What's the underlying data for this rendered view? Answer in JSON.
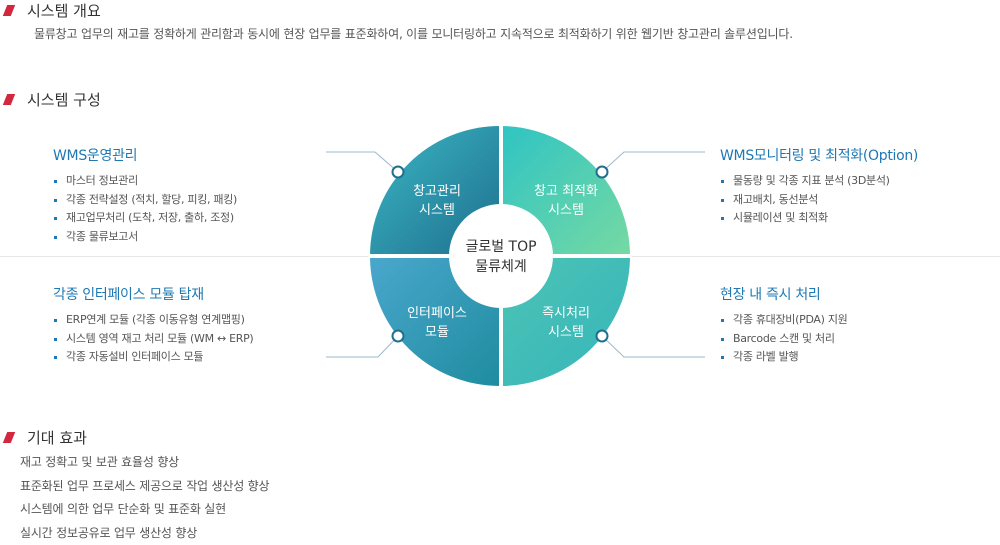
{
  "sections": {
    "overview": {
      "title": "시스템 개요",
      "text": "물류창고 업무의 재고를 정확하게 관리함과 동시에 현장 업무를 표준화하여, 이를 모니터링하고 지속적으로 최적화하기 위한 웹기반 창고관리 솔루션입니다."
    },
    "structure": {
      "title": "시스템 구성"
    },
    "effects": {
      "title": "기대 효과",
      "items": [
        "재고 정확고 및 보관 효율성 향상",
        "표준화된 업무 프로세스 제공으로 작업 생산성 향상",
        "시스템에 의한 업무 단순화 및 표준화 실현",
        "실시간 정보공유로 업무 생산성 향상"
      ]
    }
  },
  "diagram": {
    "center": [
      "글로벌 TOP",
      "물류체계"
    ],
    "quadrants": {
      "top_left": {
        "lines": [
          "창고관리",
          "시스템"
        ],
        "color": "#2b8fa6"
      },
      "top_right": {
        "lines": [
          "창고 최적화",
          "시스템"
        ],
        "color": "#3ec5b7"
      },
      "bottom_left": {
        "lines": [
          "인터페이스",
          "모듈"
        ],
        "color": "#3f9cc3"
      },
      "bottom_right": {
        "lines": [
          "즉시처리",
          "시스템"
        ],
        "color": "#3bb5b2"
      }
    }
  },
  "panels": {
    "top_left": {
      "title": "WMS운영관리",
      "items": [
        "마스터 정보관리",
        "각종 전략설정 (적치, 할당, 피킹, 패킹)",
        "재고업무처리 (도착, 저장, 출하, 조정)",
        "각종 물류보고서"
      ]
    },
    "bottom_left": {
      "title": "각종 인터페이스 모듈 탑재",
      "items": [
        "ERP연계 모듈 (각종 이동유형 연계맵핑)",
        "시스템 영역 재고 처리 모듈 (WM ↔ ERP)",
        "각종 자동설비 인터페이스 모듈"
      ]
    },
    "top_right": {
      "title": "WMS모니터링 및 최적화(Option)",
      "items": [
        "물동량 및 각종 지표 분석 (3D분석)",
        "재고배치, 동선분석",
        "시뮬레이션 및 최적화"
      ]
    },
    "bottom_right": {
      "title": "현장 내 즉시 처리",
      "items": [
        "각종 휴대장비(PDA) 지원",
        "Barcode 스캔 및 처리",
        "각종 라벨 발행"
      ]
    }
  },
  "colors": {
    "accent": "#d2273e",
    "title_blue": "#1f78b3"
  }
}
